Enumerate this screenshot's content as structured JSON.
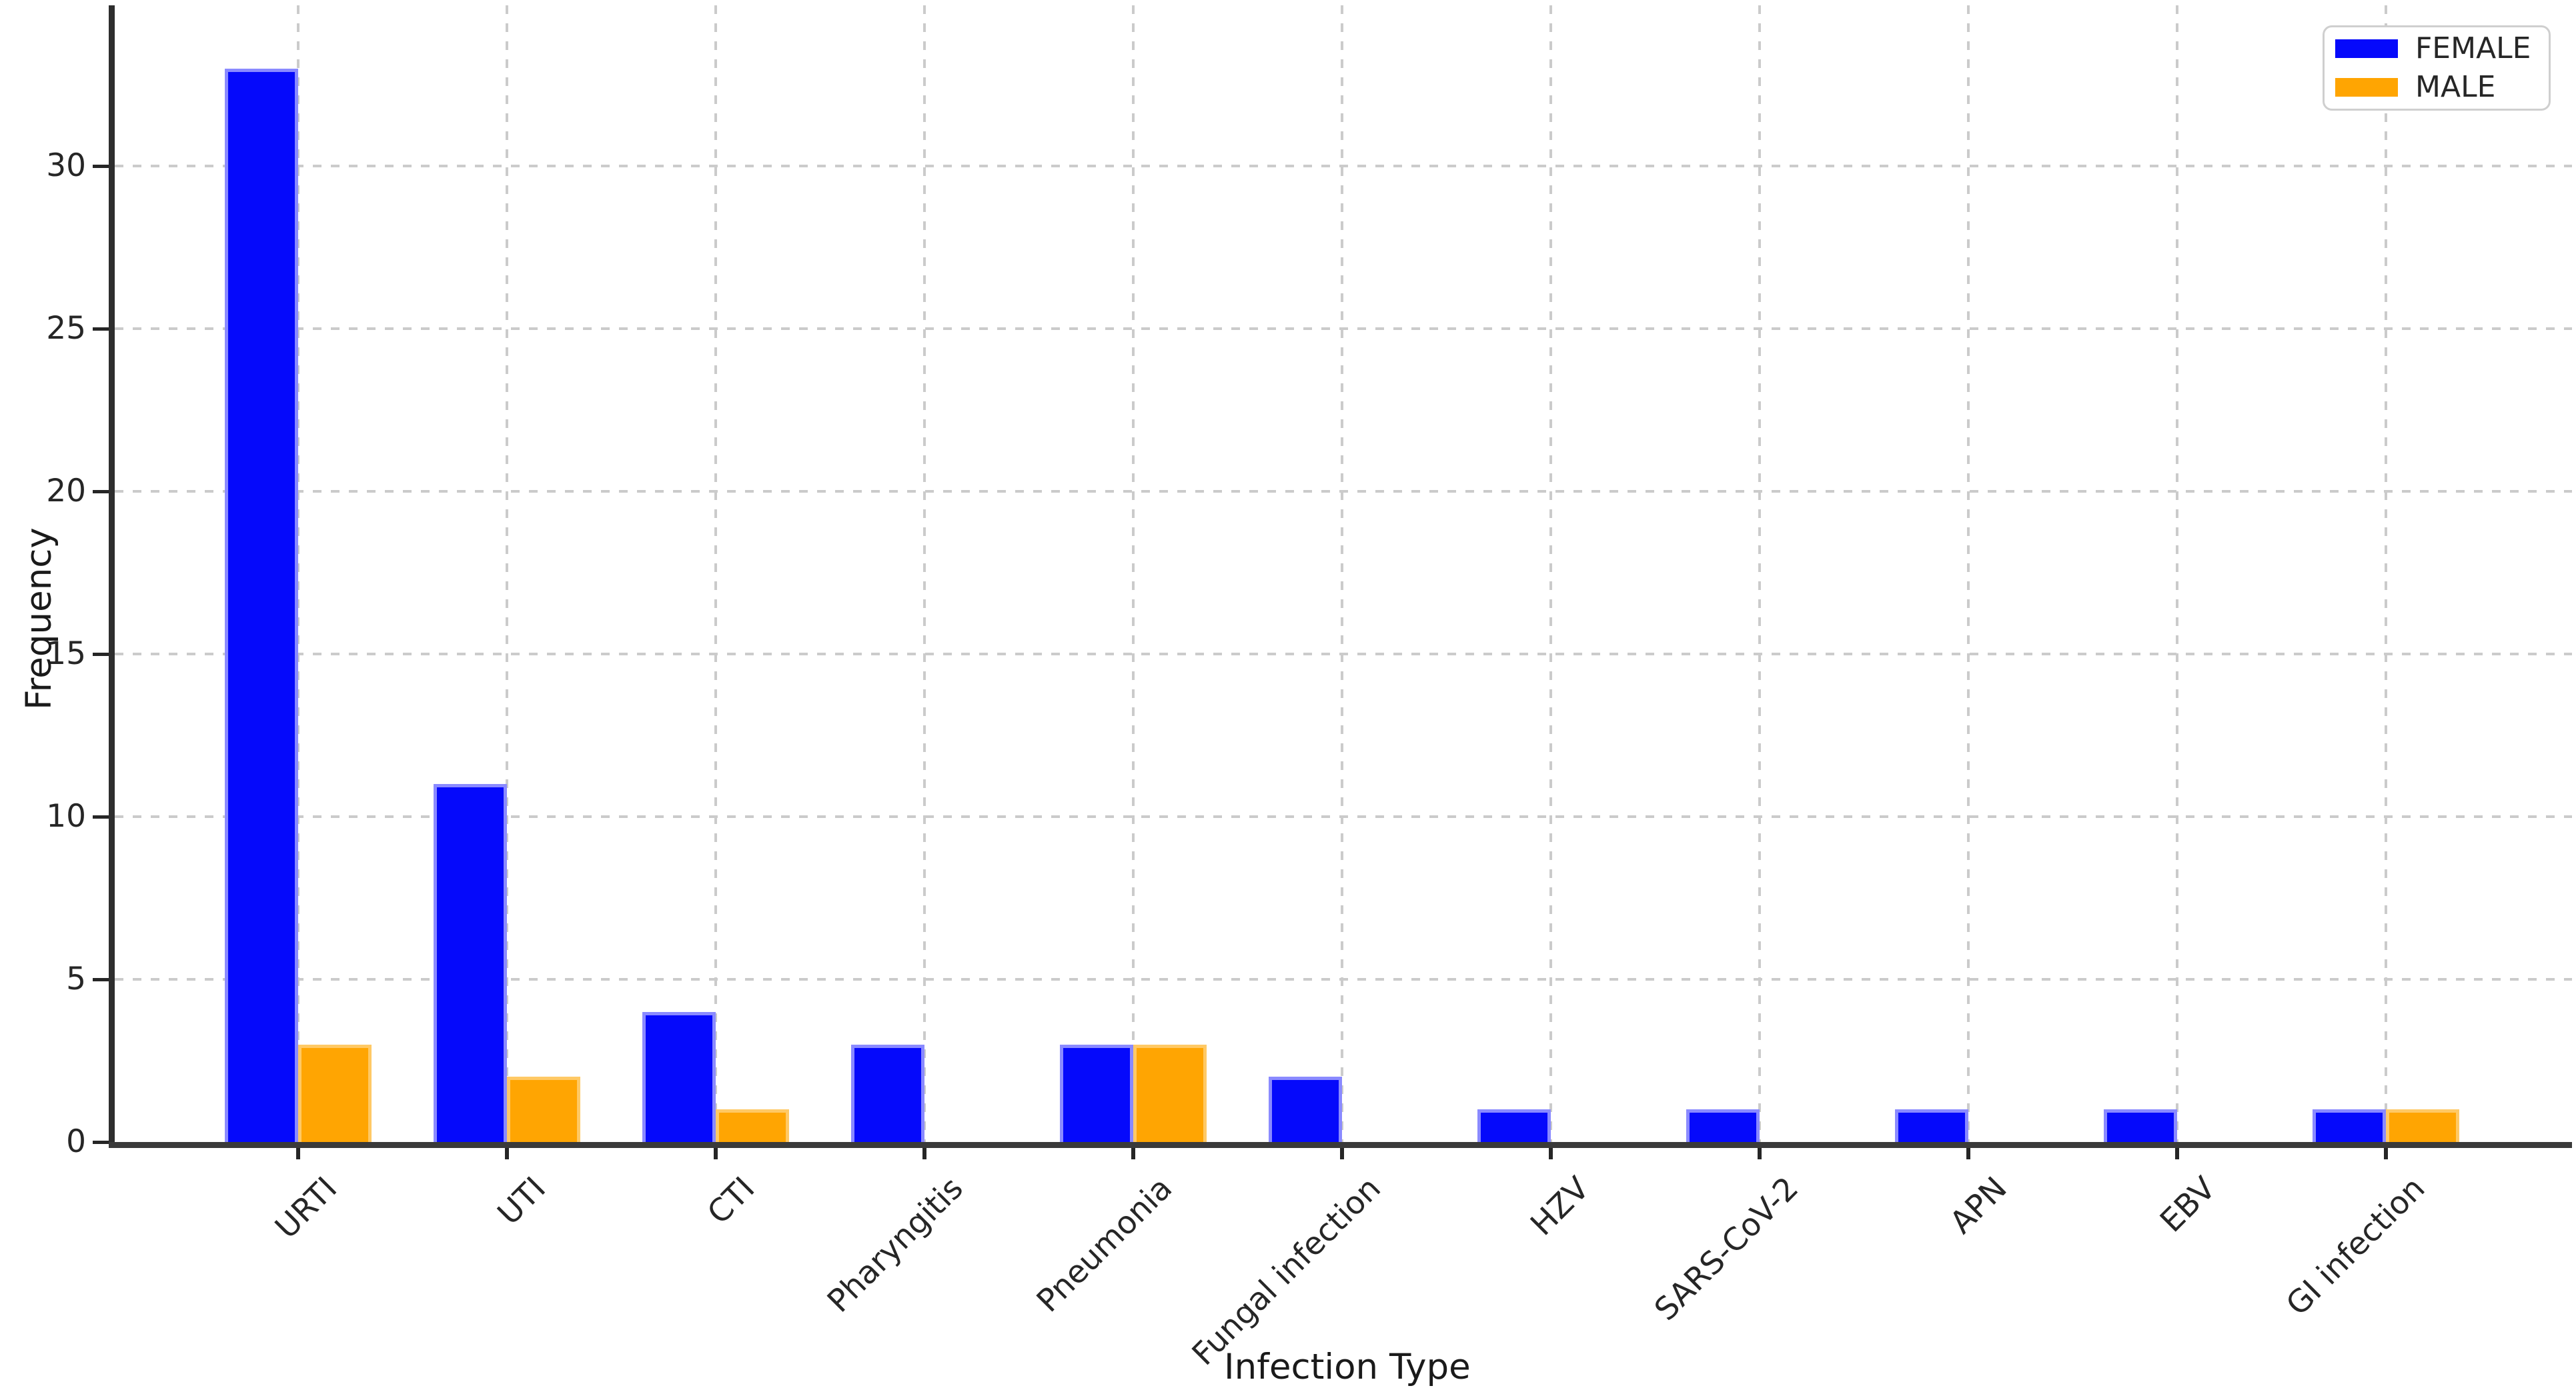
{
  "chart_data": {
    "type": "bar",
    "title": "",
    "xlabel": "Infection Type",
    "ylabel": "Frequency",
    "categories": [
      "URTI",
      "UTI",
      "CTI",
      "Pharyngitis",
      "Pneumonia",
      "Fungal infection",
      "HZV",
      "SARS-CoV-2",
      "APN",
      "EBV",
      "GI infection"
    ],
    "series": [
      {
        "name": "FEMALE",
        "color": "#0509fb",
        "edge_color": "#8a8aff",
        "values": [
          33,
          11,
          4,
          3,
          3,
          2,
          1,
          1,
          1,
          1,
          1
        ]
      },
      {
        "name": "MALE",
        "color": "#ffa502",
        "edge_color": "#ffc965",
        "values": [
          3,
          2,
          1,
          0,
          3,
          0,
          0,
          0,
          0,
          0,
          1
        ]
      }
    ],
    "yticks": [
      0,
      5,
      10,
      15,
      20,
      25,
      30
    ],
    "ylim": [
      0,
      34.9
    ],
    "grid": {
      "style": "dashed",
      "color": "#cbcbcb",
      "axes": "both"
    },
    "legend": {
      "position": "upper right"
    }
  },
  "colors": {
    "background": "#ffffff",
    "spine": "#2e2e2e",
    "tick_text": "#262626",
    "label_text": "#1a1a1a"
  }
}
